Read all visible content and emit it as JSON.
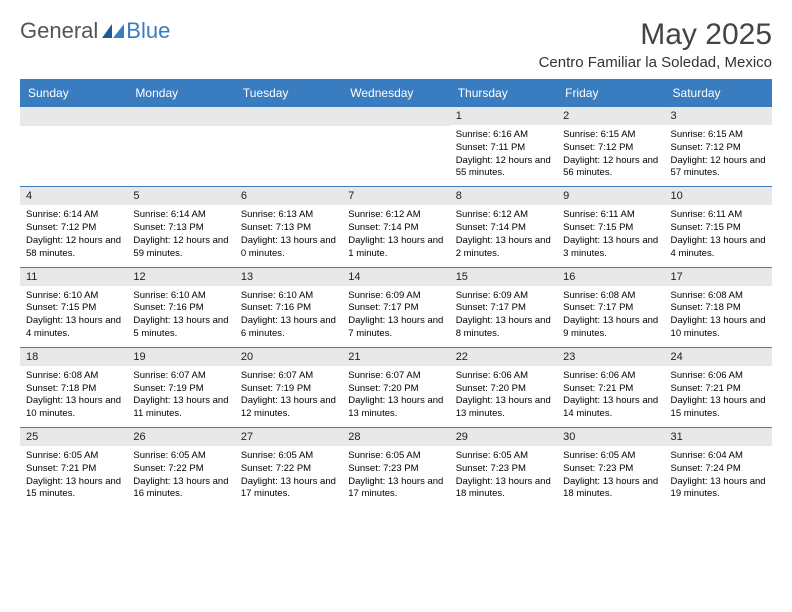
{
  "logo": {
    "part1": "General",
    "part2": "Blue"
  },
  "title": "May 2025",
  "location": "Centro Familiar la Soledad, Mexico",
  "colors": {
    "accent": "#3a7cc0",
    "header_text": "#ffffff",
    "daynum_bg": "#e8e8e8",
    "body_text": "#000000",
    "title_text": "#444444"
  },
  "day_names": [
    "Sunday",
    "Monday",
    "Tuesday",
    "Wednesday",
    "Thursday",
    "Friday",
    "Saturday"
  ],
  "weeks": [
    [
      {
        "blank": true
      },
      {
        "blank": true
      },
      {
        "blank": true
      },
      {
        "blank": true
      },
      {
        "num": "1",
        "sunrise": "Sunrise: 6:16 AM",
        "sunset": "Sunset: 7:11 PM",
        "daylight": "Daylight: 12 hours and 55 minutes."
      },
      {
        "num": "2",
        "sunrise": "Sunrise: 6:15 AM",
        "sunset": "Sunset: 7:12 PM",
        "daylight": "Daylight: 12 hours and 56 minutes."
      },
      {
        "num": "3",
        "sunrise": "Sunrise: 6:15 AM",
        "sunset": "Sunset: 7:12 PM",
        "daylight": "Daylight: 12 hours and 57 minutes."
      }
    ],
    [
      {
        "num": "4",
        "sunrise": "Sunrise: 6:14 AM",
        "sunset": "Sunset: 7:12 PM",
        "daylight": "Daylight: 12 hours and 58 minutes."
      },
      {
        "num": "5",
        "sunrise": "Sunrise: 6:14 AM",
        "sunset": "Sunset: 7:13 PM",
        "daylight": "Daylight: 12 hours and 59 minutes."
      },
      {
        "num": "6",
        "sunrise": "Sunrise: 6:13 AM",
        "sunset": "Sunset: 7:13 PM",
        "daylight": "Daylight: 13 hours and 0 minutes."
      },
      {
        "num": "7",
        "sunrise": "Sunrise: 6:12 AM",
        "sunset": "Sunset: 7:14 PM",
        "daylight": "Daylight: 13 hours and 1 minute."
      },
      {
        "num": "8",
        "sunrise": "Sunrise: 6:12 AM",
        "sunset": "Sunset: 7:14 PM",
        "daylight": "Daylight: 13 hours and 2 minutes."
      },
      {
        "num": "9",
        "sunrise": "Sunrise: 6:11 AM",
        "sunset": "Sunset: 7:15 PM",
        "daylight": "Daylight: 13 hours and 3 minutes."
      },
      {
        "num": "10",
        "sunrise": "Sunrise: 6:11 AM",
        "sunset": "Sunset: 7:15 PM",
        "daylight": "Daylight: 13 hours and 4 minutes."
      }
    ],
    [
      {
        "num": "11",
        "sunrise": "Sunrise: 6:10 AM",
        "sunset": "Sunset: 7:15 PM",
        "daylight": "Daylight: 13 hours and 4 minutes."
      },
      {
        "num": "12",
        "sunrise": "Sunrise: 6:10 AM",
        "sunset": "Sunset: 7:16 PM",
        "daylight": "Daylight: 13 hours and 5 minutes."
      },
      {
        "num": "13",
        "sunrise": "Sunrise: 6:10 AM",
        "sunset": "Sunset: 7:16 PM",
        "daylight": "Daylight: 13 hours and 6 minutes."
      },
      {
        "num": "14",
        "sunrise": "Sunrise: 6:09 AM",
        "sunset": "Sunset: 7:17 PM",
        "daylight": "Daylight: 13 hours and 7 minutes."
      },
      {
        "num": "15",
        "sunrise": "Sunrise: 6:09 AM",
        "sunset": "Sunset: 7:17 PM",
        "daylight": "Daylight: 13 hours and 8 minutes."
      },
      {
        "num": "16",
        "sunrise": "Sunrise: 6:08 AM",
        "sunset": "Sunset: 7:17 PM",
        "daylight": "Daylight: 13 hours and 9 minutes."
      },
      {
        "num": "17",
        "sunrise": "Sunrise: 6:08 AM",
        "sunset": "Sunset: 7:18 PM",
        "daylight": "Daylight: 13 hours and 10 minutes."
      }
    ],
    [
      {
        "num": "18",
        "sunrise": "Sunrise: 6:08 AM",
        "sunset": "Sunset: 7:18 PM",
        "daylight": "Daylight: 13 hours and 10 minutes."
      },
      {
        "num": "19",
        "sunrise": "Sunrise: 6:07 AM",
        "sunset": "Sunset: 7:19 PM",
        "daylight": "Daylight: 13 hours and 11 minutes."
      },
      {
        "num": "20",
        "sunrise": "Sunrise: 6:07 AM",
        "sunset": "Sunset: 7:19 PM",
        "daylight": "Daylight: 13 hours and 12 minutes."
      },
      {
        "num": "21",
        "sunrise": "Sunrise: 6:07 AM",
        "sunset": "Sunset: 7:20 PM",
        "daylight": "Daylight: 13 hours and 13 minutes."
      },
      {
        "num": "22",
        "sunrise": "Sunrise: 6:06 AM",
        "sunset": "Sunset: 7:20 PM",
        "daylight": "Daylight: 13 hours and 13 minutes."
      },
      {
        "num": "23",
        "sunrise": "Sunrise: 6:06 AM",
        "sunset": "Sunset: 7:21 PM",
        "daylight": "Daylight: 13 hours and 14 minutes."
      },
      {
        "num": "24",
        "sunrise": "Sunrise: 6:06 AM",
        "sunset": "Sunset: 7:21 PM",
        "daylight": "Daylight: 13 hours and 15 minutes."
      }
    ],
    [
      {
        "num": "25",
        "sunrise": "Sunrise: 6:05 AM",
        "sunset": "Sunset: 7:21 PM",
        "daylight": "Daylight: 13 hours and 15 minutes."
      },
      {
        "num": "26",
        "sunrise": "Sunrise: 6:05 AM",
        "sunset": "Sunset: 7:22 PM",
        "daylight": "Daylight: 13 hours and 16 minutes."
      },
      {
        "num": "27",
        "sunrise": "Sunrise: 6:05 AM",
        "sunset": "Sunset: 7:22 PM",
        "daylight": "Daylight: 13 hours and 17 minutes."
      },
      {
        "num": "28",
        "sunrise": "Sunrise: 6:05 AM",
        "sunset": "Sunset: 7:23 PM",
        "daylight": "Daylight: 13 hours and 17 minutes."
      },
      {
        "num": "29",
        "sunrise": "Sunrise: 6:05 AM",
        "sunset": "Sunset: 7:23 PM",
        "daylight": "Daylight: 13 hours and 18 minutes."
      },
      {
        "num": "30",
        "sunrise": "Sunrise: 6:05 AM",
        "sunset": "Sunset: 7:23 PM",
        "daylight": "Daylight: 13 hours and 18 minutes."
      },
      {
        "num": "31",
        "sunrise": "Sunrise: 6:04 AM",
        "sunset": "Sunset: 7:24 PM",
        "daylight": "Daylight: 13 hours and 19 minutes."
      }
    ]
  ]
}
